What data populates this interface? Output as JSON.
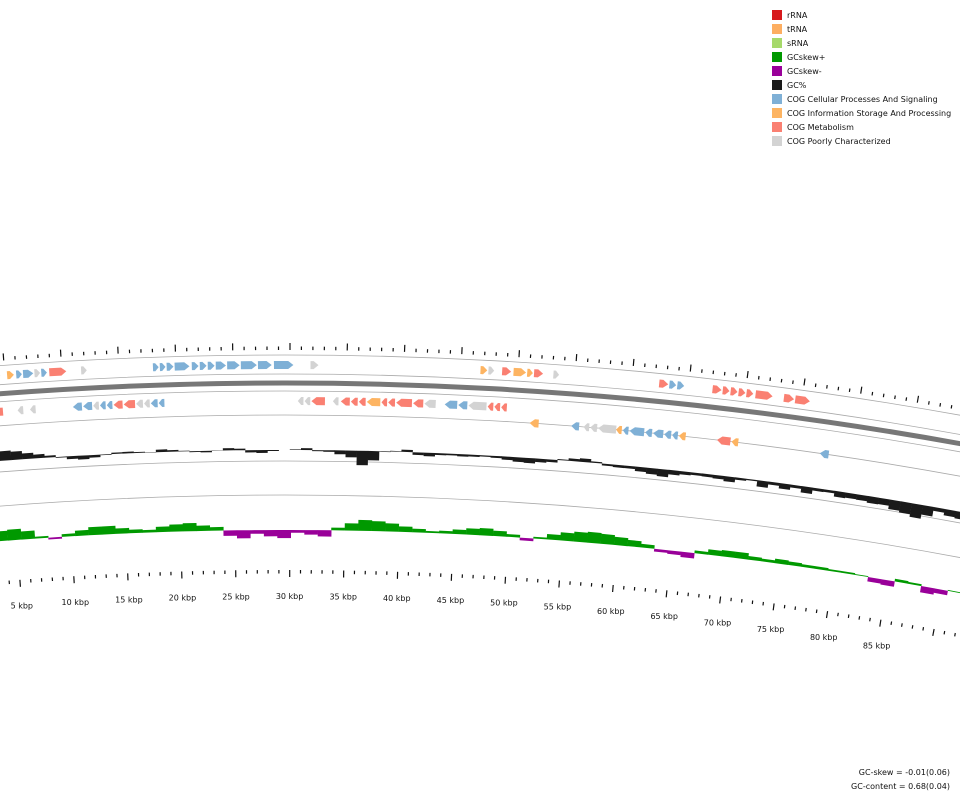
{
  "legend": {
    "items": [
      {
        "label": "rRNA",
        "color": "#d7191c"
      },
      {
        "label": "tRNA",
        "color": "#fdae61"
      },
      {
        "label": "sRNA",
        "color": "#a6d96a"
      },
      {
        "label": "GCskew+",
        "color": "#009900"
      },
      {
        "label": "GCskew-",
        "color": "#990099"
      },
      {
        "label": "GC%",
        "color": "#1a1a1a"
      },
      {
        "label": "COG Cellular Processes And Signaling",
        "color": "#7fb0d6"
      },
      {
        "label": "COG Information Storage And Processing",
        "color": "#fdb462"
      },
      {
        "label": "COG Metabolism",
        "color": "#fa8072"
      },
      {
        "label": "COG Poorly Characterized",
        "color": "#d3d3d3"
      }
    ]
  },
  "scale": {
    "unit": "kbp",
    "labels": [
      "5 kbp",
      "10 kbp",
      "15 kbp",
      "20 kbp",
      "25 kbp",
      "30 kbp",
      "35 kbp",
      "40 kbp",
      "45 kbp",
      "50 kbp",
      "55 kbp",
      "60 kbp",
      "65 kbp",
      "70 kbp",
      "75 kbp",
      "80 kbp",
      "85 kbp"
    ]
  },
  "stats": {
    "gc_skew": "GC-skew = -0.01(0.06)",
    "gc_content": "GC-content = 0.68(0.04)"
  },
  "colors": {
    "backbone": "#777777",
    "gc_content": "#1a1a1a",
    "skew_pos": "#009900",
    "skew_neg": "#990099",
    "ring_line": "#aaaaaa"
  },
  "features": {
    "forward": [
      {
        "start": 2.2,
        "len": 0.6,
        "cog": "info"
      },
      {
        "start": 2.9,
        "len": 0.5,
        "cog": "poor"
      },
      {
        "start": 3.5,
        "len": 0.5,
        "cog": "poor"
      },
      {
        "start": 4.1,
        "len": 0.5,
        "cog": "poor"
      },
      {
        "start": 5.2,
        "len": 0.6,
        "cog": "info"
      },
      {
        "start": 6.0,
        "len": 0.5,
        "cog": "cell"
      },
      {
        "start": 6.6,
        "len": 0.9,
        "cog": "cell"
      },
      {
        "start": 7.6,
        "len": 0.5,
        "cog": "poor"
      },
      {
        "start": 8.2,
        "len": 0.5,
        "cog": "cell"
      },
      {
        "start": 8.9,
        "len": 1.5,
        "cog": "meta"
      },
      {
        "start": 11.7,
        "len": 0.5,
        "cog": "poor"
      },
      {
        "start": 18.0,
        "len": 0.5,
        "cog": "cell"
      },
      {
        "start": 18.6,
        "len": 0.5,
        "cog": "cell"
      },
      {
        "start": 19.2,
        "len": 0.6,
        "cog": "cell"
      },
      {
        "start": 19.9,
        "len": 1.3,
        "cog": "cell"
      },
      {
        "start": 21.4,
        "len": 0.6,
        "cog": "cell"
      },
      {
        "start": 22.1,
        "len": 0.6,
        "cog": "cell"
      },
      {
        "start": 22.8,
        "len": 0.6,
        "cog": "cell"
      },
      {
        "start": 23.5,
        "len": 0.9,
        "cog": "cell"
      },
      {
        "start": 24.5,
        "len": 1.1,
        "cog": "cell"
      },
      {
        "start": 25.7,
        "len": 1.4,
        "cog": "cell"
      },
      {
        "start": 27.2,
        "len": 1.2,
        "cog": "cell"
      },
      {
        "start": 28.6,
        "len": 1.7,
        "cog": "cell"
      },
      {
        "start": 31.8,
        "len": 0.7,
        "cog": "poor"
      },
      {
        "start": 46.7,
        "len": 0.6,
        "cog": "info"
      },
      {
        "start": 47.4,
        "len": 0.5,
        "cog": "poor"
      },
      {
        "start": 48.6,
        "len": 0.8,
        "cog": "meta"
      },
      {
        "start": 49.6,
        "len": 1.1,
        "cog": "info"
      },
      {
        "start": 50.8,
        "len": 0.5,
        "cog": "info"
      },
      {
        "start": 51.4,
        "len": 0.8,
        "cog": "meta"
      },
      {
        "start": 53.1,
        "len": 0.5,
        "cog": "poor"
      },
      {
        "start": 62.4,
        "len": 0.8,
        "cog": "meta"
      },
      {
        "start": 63.3,
        "len": 0.6,
        "cog": "cell"
      },
      {
        "start": 64.0,
        "len": 0.6,
        "cog": "cell"
      },
      {
        "start": 67.1,
        "len": 0.8,
        "cog": "meta"
      },
      {
        "start": 68.0,
        "len": 0.6,
        "cog": "meta"
      },
      {
        "start": 68.7,
        "len": 0.6,
        "cog": "meta"
      },
      {
        "start": 69.4,
        "len": 0.6,
        "cog": "meta"
      },
      {
        "start": 70.1,
        "len": 0.6,
        "cog": "meta"
      },
      {
        "start": 70.9,
        "len": 1.5,
        "cog": "meta"
      },
      {
        "start": 73.4,
        "len": 0.9,
        "cog": "meta"
      },
      {
        "start": 74.4,
        "len": 1.3,
        "cog": "meta"
      }
    ],
    "reverse": [
      {
        "start": 0.0,
        "len": 0.7,
        "cog": "meta"
      },
      {
        "start": 0.8,
        "len": 0.5,
        "cog": "cell"
      },
      {
        "start": 1.4,
        "len": 0.5,
        "cog": "cell"
      },
      {
        "start": 2.0,
        "len": 0.5,
        "cog": "cell"
      },
      {
        "start": 2.6,
        "len": 1.0,
        "cog": "poor"
      },
      {
        "start": 3.7,
        "len": 0.9,
        "cog": "meta"
      },
      {
        "start": 5.9,
        "len": 0.5,
        "cog": "poor"
      },
      {
        "start": 7.0,
        "len": 0.5,
        "cog": "poor"
      },
      {
        "start": 10.8,
        "len": 0.8,
        "cog": "cell"
      },
      {
        "start": 11.7,
        "len": 0.8,
        "cog": "cell"
      },
      {
        "start": 12.6,
        "len": 0.5,
        "cog": "poor"
      },
      {
        "start": 13.2,
        "len": 0.5,
        "cog": "cell"
      },
      {
        "start": 13.8,
        "len": 0.5,
        "cog": "cell"
      },
      {
        "start": 14.4,
        "len": 0.8,
        "cog": "meta"
      },
      {
        "start": 15.3,
        "len": 1.0,
        "cog": "meta"
      },
      {
        "start": 16.4,
        "len": 0.6,
        "cog": "poor"
      },
      {
        "start": 17.1,
        "len": 0.5,
        "cog": "poor"
      },
      {
        "start": 17.7,
        "len": 0.6,
        "cog": "cell"
      },
      {
        "start": 18.4,
        "len": 0.5,
        "cog": "cell"
      },
      {
        "start": 30.7,
        "len": 0.5,
        "cog": "poor"
      },
      {
        "start": 31.3,
        "len": 0.5,
        "cog": "poor"
      },
      {
        "start": 31.9,
        "len": 1.2,
        "cog": "meta"
      },
      {
        "start": 33.8,
        "len": 0.5,
        "cog": "poor"
      },
      {
        "start": 34.5,
        "len": 0.8,
        "cog": "meta"
      },
      {
        "start": 35.4,
        "len": 0.6,
        "cog": "meta"
      },
      {
        "start": 36.1,
        "len": 0.6,
        "cog": "meta"
      },
      {
        "start": 36.8,
        "len": 1.2,
        "cog": "info"
      },
      {
        "start": 38.1,
        "len": 0.5,
        "cog": "meta"
      },
      {
        "start": 38.7,
        "len": 0.6,
        "cog": "meta"
      },
      {
        "start": 39.4,
        "len": 1.4,
        "cog": "meta"
      },
      {
        "start": 40.9,
        "len": 0.9,
        "cog": "meta"
      },
      {
        "start": 41.9,
        "len": 1.0,
        "cog": "poor"
      },
      {
        "start": 43.7,
        "len": 1.1,
        "cog": "cell"
      },
      {
        "start": 44.9,
        "len": 0.8,
        "cog": "cell"
      },
      {
        "start": 45.8,
        "len": 1.6,
        "cog": "poor"
      },
      {
        "start": 47.5,
        "len": 0.5,
        "cog": "meta"
      },
      {
        "start": 48.1,
        "len": 0.5,
        "cog": "meta"
      },
      {
        "start": 48.7,
        "len": 0.5,
        "cog": "meta"
      }
    ],
    "reverse_inner": [
      {
        "start": 51.3,
        "len": 0.8,
        "cog": "info"
      },
      {
        "start": 55.0,
        "len": 0.7,
        "cog": "cell"
      },
      {
        "start": 56.1,
        "len": 0.5,
        "cog": "poor"
      },
      {
        "start": 56.7,
        "len": 0.6,
        "cog": "poor"
      },
      {
        "start": 57.4,
        "len": 1.6,
        "cog": "poor"
      },
      {
        "start": 59.0,
        "len": 0.5,
        "cog": "info"
      },
      {
        "start": 59.6,
        "len": 0.5,
        "cog": "cell"
      },
      {
        "start": 60.2,
        "len": 1.3,
        "cog": "cell"
      },
      {
        "start": 61.6,
        "len": 0.6,
        "cog": "cell"
      },
      {
        "start": 62.3,
        "len": 0.9,
        "cog": "cell"
      },
      {
        "start": 63.3,
        "len": 0.6,
        "cog": "cell"
      },
      {
        "start": 64.0,
        "len": 0.5,
        "cog": "cell"
      },
      {
        "start": 64.6,
        "len": 0.6,
        "cog": "info"
      },
      {
        "start": 68.0,
        "len": 1.2,
        "cog": "meta"
      },
      {
        "start": 69.3,
        "len": 0.6,
        "cog": "info"
      },
      {
        "start": 77.2,
        "len": 0.8,
        "cog": "cell"
      }
    ]
  },
  "gc_content": [
    1.5,
    1.8,
    2.2,
    2.4,
    2.6,
    3.5,
    6.0,
    5.2,
    3.6,
    2.4,
    1.2,
    -0.5,
    -1.8,
    -2.4,
    -1.6,
    -0.4,
    0.8,
    1.0,
    0.6,
    -0.2,
    1.6,
    1.0,
    0.4,
    -0.6,
    -0.9,
    0.2,
    1.4,
    1.0,
    -1.4,
    -1.8,
    -0.6,
    0.0,
    0.4,
    1.2,
    -0.6,
    -1.0,
    -2.4,
    -4.2,
    -9.0,
    -5.8,
    -0.4,
    0.4,
    1.4,
    -1.6,
    -2.2,
    -1.2,
    -1.0,
    -1.4,
    -1.2,
    -0.8,
    -1.2,
    -2.0,
    -2.8,
    -3.2,
    -2.2,
    -1.6,
    0.6,
    1.6,
    2.2,
    0.8,
    -1.2,
    -1.6,
    -1.6,
    -2.8,
    -3.8,
    -4.6,
    -2.8,
    -2.0,
    -1.6,
    -1.8,
    -2.2,
    -3.2,
    -1.4,
    -0.8,
    -4.0,
    -1.8,
    -3.4,
    -1.8,
    -4.0,
    -1.8,
    -1.6,
    -3.6,
    -3.2,
    -3.4,
    -4.2,
    -4.0,
    -6.0,
    -7.0,
    -8.6,
    -6.0,
    -2.4,
    -4.0,
    -4.6,
    -3.0,
    -2.0,
    -3.0,
    -4.0,
    -4.8,
    -5.4,
    -6.2
  ],
  "gc_skew": [
    0.6,
    0.8,
    0.9,
    1.1,
    1.1,
    1.2,
    0.9,
    0.2,
    -0.2,
    0.3,
    0.6,
    0.9,
    0.9,
    0.6,
    0.4,
    0.3,
    0.6,
    0.8,
    0.9,
    0.6,
    0.4,
    -0.6,
    -0.9,
    -0.4,
    -0.7,
    -0.9,
    -0.3,
    -0.5,
    -0.7,
    0.3,
    0.8,
    1.2,
    1.1,
    0.9,
    0.6,
    0.4,
    0.2,
    0.3,
    0.5,
    0.7,
    0.8,
    0.6,
    0.3,
    -0.3,
    0.2,
    0.6,
    0.9,
    1.1,
    1.2,
    1.1,
    0.9,
    0.7,
    0.4,
    -0.3,
    -0.4,
    -0.6,
    0.3,
    0.6,
    0.7,
    0.7,
    0.4,
    0.3,
    0.5,
    0.4,
    0.3,
    0.3,
    0.2,
    0.2,
    0.1,
    -0.5,
    -0.6,
    0.3,
    0.2,
    -0.7,
    -0.5,
    0.1,
    -0.2,
    0.3,
    0.1,
    -0.3,
    -0.5
  ]
}
